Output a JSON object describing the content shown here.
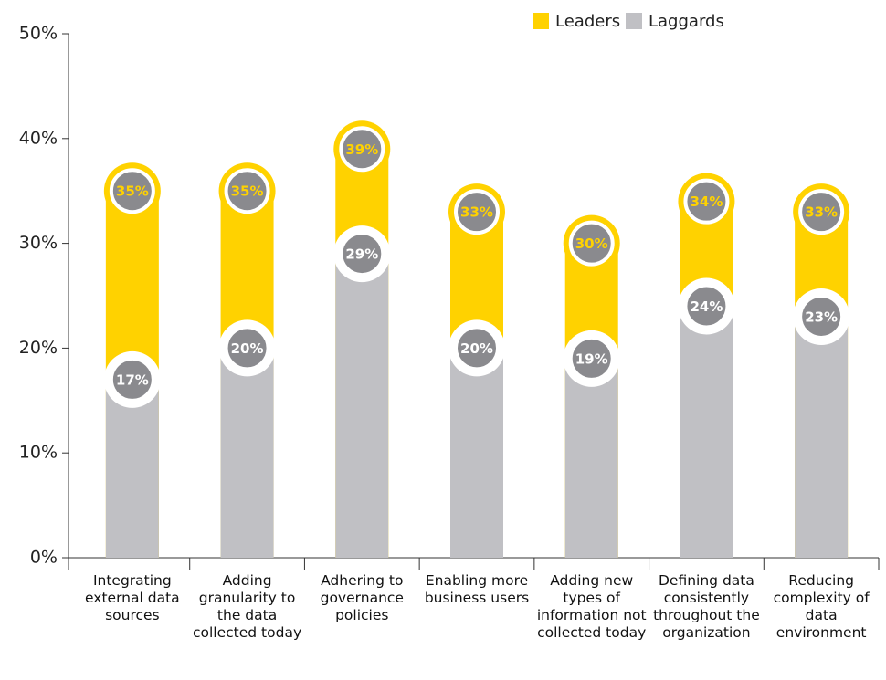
{
  "chart_data": {
    "type": "bar",
    "mode": "overlap",
    "categories": [
      "Integrating external data sources",
      "Adding granularity to the data collected today",
      "Adhering to governance policies",
      "Enabling more business users",
      "Adding new types of information not collected today",
      "Defining data consistently throughout the organization",
      "Reducing complexity of data environment"
    ],
    "series": [
      {
        "name": "Leaders",
        "color": "#ffd200",
        "values": [
          35,
          35,
          39,
          33,
          30,
          34,
          33
        ],
        "value_labels": [
          "35%",
          "35%",
          "39%",
          "33%",
          "30%",
          "34%",
          "33%"
        ]
      },
      {
        "name": "Laggards",
        "color": "#c0c0c4",
        "values": [
          17,
          20,
          29,
          20,
          19,
          24,
          23
        ],
        "value_labels": [
          "17%",
          "20%",
          "29%",
          "20%",
          "19%",
          "24%",
          "23%"
        ]
      }
    ],
    "ylim": [
      0,
      50
    ],
    "yticks": [
      {
        "value": 0,
        "label": "0%"
      },
      {
        "value": 10,
        "label": "10%"
      },
      {
        "value": 20,
        "label": "20%"
      },
      {
        "value": 30,
        "label": "30%"
      },
      {
        "value": 40,
        "label": "40%"
      },
      {
        "value": 50,
        "label": "50%"
      }
    ],
    "legend": "top-right",
    "grid": false
  }
}
